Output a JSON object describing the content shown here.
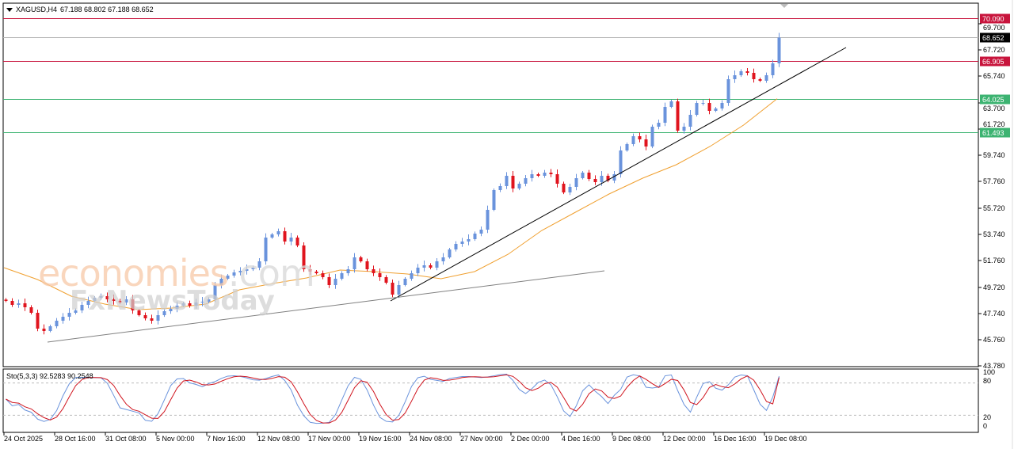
{
  "header": {
    "symbol": "XAGUSD,H4",
    "ohlc": "67.188 68.802 67.188 68.652"
  },
  "watermark": {
    "logo1": "economies.com",
    "logo2": "FxNewsToday"
  },
  "colors": {
    "bull": "#6a93dc",
    "bear": "#e0141e",
    "ma": "#f0a030",
    "resistance": "#c8143c",
    "support": "#3cb371",
    "current": "#000000",
    "stoch_main": "#6a93dc",
    "stoch_signal": "#d0141e"
  },
  "chart_data": {
    "type": "candlestick",
    "symbol": "XAGUSD",
    "timeframe": "H4",
    "ylim": [
      43.78,
      70.5
    ],
    "y_ticks": [
      "69.700",
      "67.720",
      "65.740",
      "63.700",
      "61.720",
      "59.740",
      "57.760",
      "55.720",
      "53.740",
      "51.760",
      "49.720",
      "47.740",
      "45.760",
      "43.780"
    ],
    "x_ticks": [
      "24 Oct 2025",
      "28 Oct 16:00",
      "31 Oct 08:00",
      "5 Nov 00:00",
      "7 Nov 16:00",
      "12 Nov 08:00",
      "17 Nov 00:00",
      "19 Nov 16:00",
      "24 Nov 08:00",
      "27 Nov 00:00",
      "2 Dec 00:00",
      "4 Dec 16:00",
      "9 Dec 08:00",
      "12 Dec 00:00",
      "16 Dec 16:00",
      "19 Dec 08:00"
    ],
    "closes": [
      48.7,
      48.4,
      48.52,
      48.22,
      47.8,
      46.6,
      46.42,
      46.78,
      47.2,
      47.5,
      47.8,
      47.98,
      48.4,
      48.7,
      48.94,
      49.06,
      48.82,
      48.7,
      48.58,
      48.82,
      47.98,
      47.62,
      47.38,
      47.2,
      47.62,
      47.92,
      48.1,
      48.34,
      48.52,
      48.34,
      48.58,
      48.64,
      48.82,
      49.9,
      50.38,
      50.62,
      50.86,
      50.98,
      51.1,
      51.22,
      51.7,
      53.5,
      53.74,
      53.98,
      53.2,
      53.5,
      52.9,
      51.1,
      50.92,
      50.8,
      50.5,
      49.9,
      50.38,
      50.8,
      51.1,
      52.0,
      51.7,
      51.1,
      50.8,
      50.5,
      50.08,
      49.18,
      49.9,
      50.38,
      50.8,
      51.22,
      51.4,
      51.22,
      51.7,
      52.0,
      52.6,
      53.02,
      53.2,
      53.38,
      53.8,
      54.1,
      55.6,
      57.1,
      57.4,
      58.18,
      57.22,
      57.58,
      58.0,
      58.3,
      58.18,
      58.42,
      58.3,
      57.58,
      56.92,
      57.34,
      58.0,
      58.42,
      57.94,
      57.7,
      58.18,
      57.82,
      58.3,
      60.1,
      60.58,
      61.18,
      60.94,
      60.4,
      61.9,
      62.2,
      63.4,
      63.82,
      61.6,
      61.9,
      62.8,
      63.7,
      63.7,
      63.1,
      63.28,
      63.7,
      65.5,
      65.8,
      66.1,
      65.98,
      65.5,
      65.38,
      65.8,
      66.7,
      68.652
    ],
    "moving_average": [
      51.22,
      50.32,
      49.06,
      48.46,
      48.04,
      48.16,
      48.46,
      49.54,
      50.02,
      50.44,
      51.04,
      50.92,
      50.74,
      50.38,
      50.92,
      52.24,
      54.04,
      55.42,
      56.8,
      58.0,
      59.02,
      60.4,
      62.02,
      64.02
    ],
    "levels": [
      {
        "label": "70.090",
        "price": 70.09,
        "kind": "resistance"
      },
      {
        "label": "68.652",
        "price": 68.652,
        "kind": "current"
      },
      {
        "label": "66.905",
        "price": 66.905,
        "kind": "resistance"
      },
      {
        "label": "64.025",
        "price": 64.025,
        "kind": "support"
      },
      {
        "label": "61.493",
        "price": 61.493,
        "kind": "support"
      }
    ],
    "trendlines": [
      {
        "name": "steep-uptrend",
        "from": [
          "19 Nov 16:00",
          49.18
        ],
        "to": [
          "22 Dec",
          67.98
        ]
      },
      {
        "name": "long-uptrend",
        "from": [
          "28 Oct",
          45.9
        ],
        "to": [
          "9 Dec",
          51.3
        ]
      }
    ],
    "stochastic": {
      "label": "Sto(5,3,3) 92.5283 90.2548",
      "main": 92.5283,
      "signal": 90.2548,
      "levels": [
        "100",
        "80",
        "20",
        "0"
      ]
    }
  }
}
